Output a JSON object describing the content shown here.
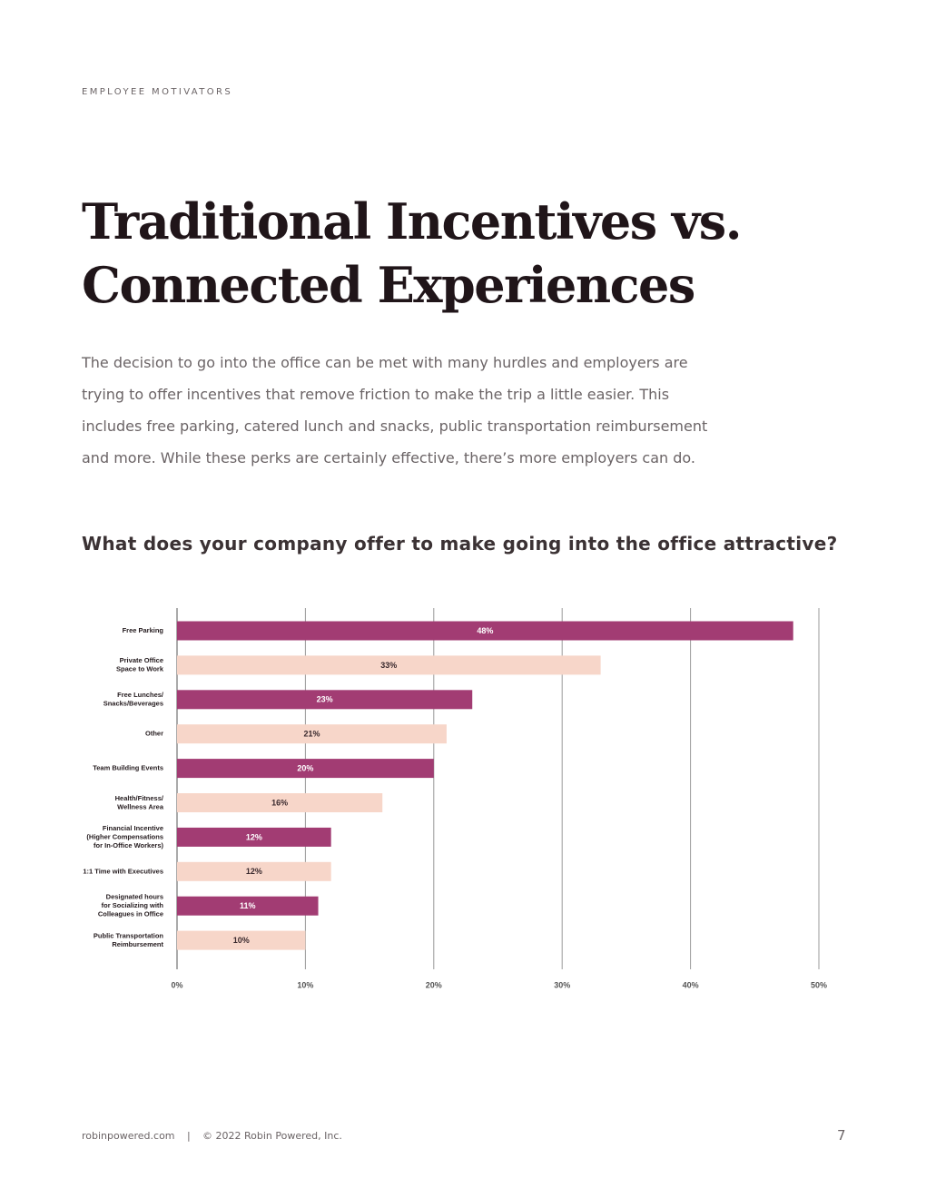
{
  "header": {
    "eyebrow": "EMPLOYEE MOTIVATORS",
    "title_lines": [
      "Traditional Incentives vs.",
      "Connected Experiences"
    ],
    "body_lines": [
      "The decision to go into the office can be met with many hurdles and employers are",
      "trying to offer incentives that remove friction to make the trip a little easier. This",
      "includes free parking, catered lunch and snacks, public transportation reimbursement",
      "and more. While these perks are certainly effective, there’s more employers can do."
    ]
  },
  "chart_data": {
    "type": "hbar",
    "title": "What does your company offer to make going into the office attractive?",
    "categories": [
      "Free Parking",
      "Private Office\nSpace to Work",
      "Free Lunches/\nSnacks/Beverages",
      "Other",
      "Team Building Events",
      "Health/Fitness/\nWellness Area",
      "Financial Incentive\n(Higher Compensations\nfor In-Office Workers)",
      "1:1 Time with Executives",
      "Designated hours\nfor Socializing with\nColleagues in Office",
      "Public Transportation\nReimbursement"
    ],
    "values": [
      48,
      33,
      23,
      21,
      20,
      16,
      12,
      12,
      11,
      10
    ],
    "value_labels": [
      "48%",
      "33%",
      "23%",
      "21%",
      "20%",
      "16%",
      "12%",
      "12%",
      "11%",
      "10%"
    ],
    "colors": [
      "#a23c73",
      "#f7d6c9",
      "#a23c73",
      "#f7d6c9",
      "#a23c73",
      "#f7d6c9",
      "#a23c73",
      "#f7d6c9",
      "#a23c73",
      "#f7d6c9"
    ],
    "xlim": [
      0,
      50
    ],
    "xticks": [
      {
        "value": 0,
        "label": "0%"
      },
      {
        "value": 10,
        "label": "10%"
      },
      {
        "value": 20,
        "label": "20%"
      },
      {
        "value": 30,
        "label": "30%"
      },
      {
        "value": 40,
        "label": "40%"
      },
      {
        "value": 50,
        "label": "50%"
      }
    ],
    "grid": true
  },
  "footer": {
    "site": "robinpowered.com",
    "separator": "|",
    "copyright": "© 2022 Robin Powered, Inc.",
    "page": "7"
  }
}
